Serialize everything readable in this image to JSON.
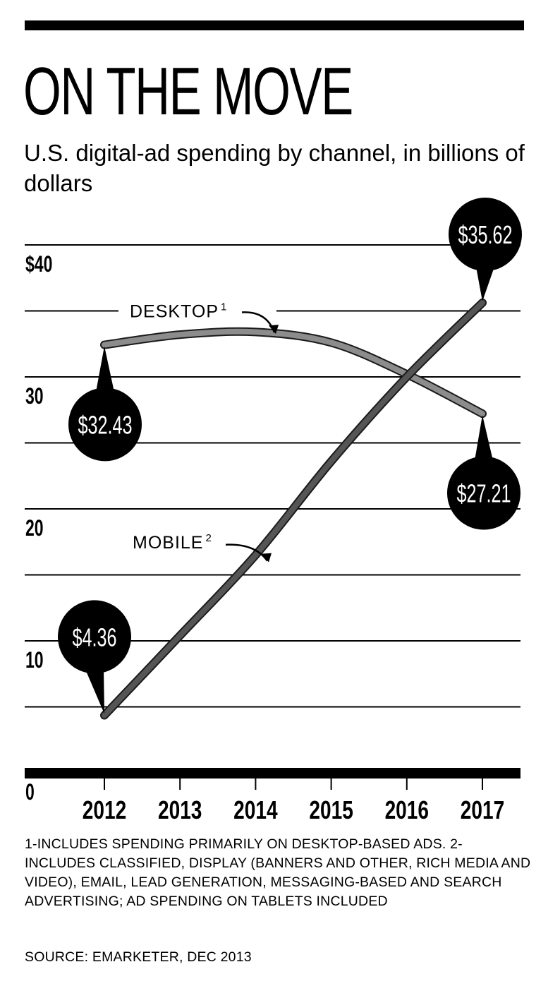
{
  "header": {
    "title": "ON THE MOVE",
    "subtitle": "U.S. digital-ad spending by channel, in billions of dollars"
  },
  "chart_data": {
    "type": "line",
    "title": "ON THE MOVE",
    "subtitle": "U.S. digital-ad spending by channel, in billions of dollars",
    "x": [
      "2012",
      "2013",
      "2014",
      "2015",
      "2016",
      "2017"
    ],
    "ylim": [
      0,
      40
    ],
    "yticks": [
      "$40",
      "30",
      "20",
      "10",
      "0"
    ],
    "grid": true,
    "series": [
      {
        "name": "DESKTOP",
        "footnote": "1",
        "values": [
          32.43,
          33.2,
          33.4,
          32.6,
          30.2,
          27.21
        ],
        "color": "#8c8c8c"
      },
      {
        "name": "MOBILE",
        "footnote": "2",
        "values": [
          4.36,
          10.4,
          16.5,
          23.6,
          30.0,
          35.62
        ],
        "color": "#555555"
      }
    ],
    "callouts": [
      {
        "series": "DESKTOP",
        "x": "2012",
        "label": "$32.43"
      },
      {
        "series": "DESKTOP",
        "x": "2017",
        "label": "$27.21"
      },
      {
        "series": "MOBILE",
        "x": "2012",
        "label": "$4.36"
      },
      {
        "series": "MOBILE",
        "x": "2017",
        "label": "$35.62"
      }
    ]
  },
  "footnote": "1-INCLUDES SPENDING PRIMARILY ON DESKTOP-BASED ADS.  2-INCLUDES CLASSIFIED, DISPLAY (BANNERS AND OTHER, RICH MEDIA AND VIDEO), EMAIL, LEAD GENERATION, MESSAGING-BASED AND SEARCH ADVERTISING; AD SPENDING ON TABLETS INCLUDED",
  "source": "SOURCE: EMARKETER, DEC 2013"
}
